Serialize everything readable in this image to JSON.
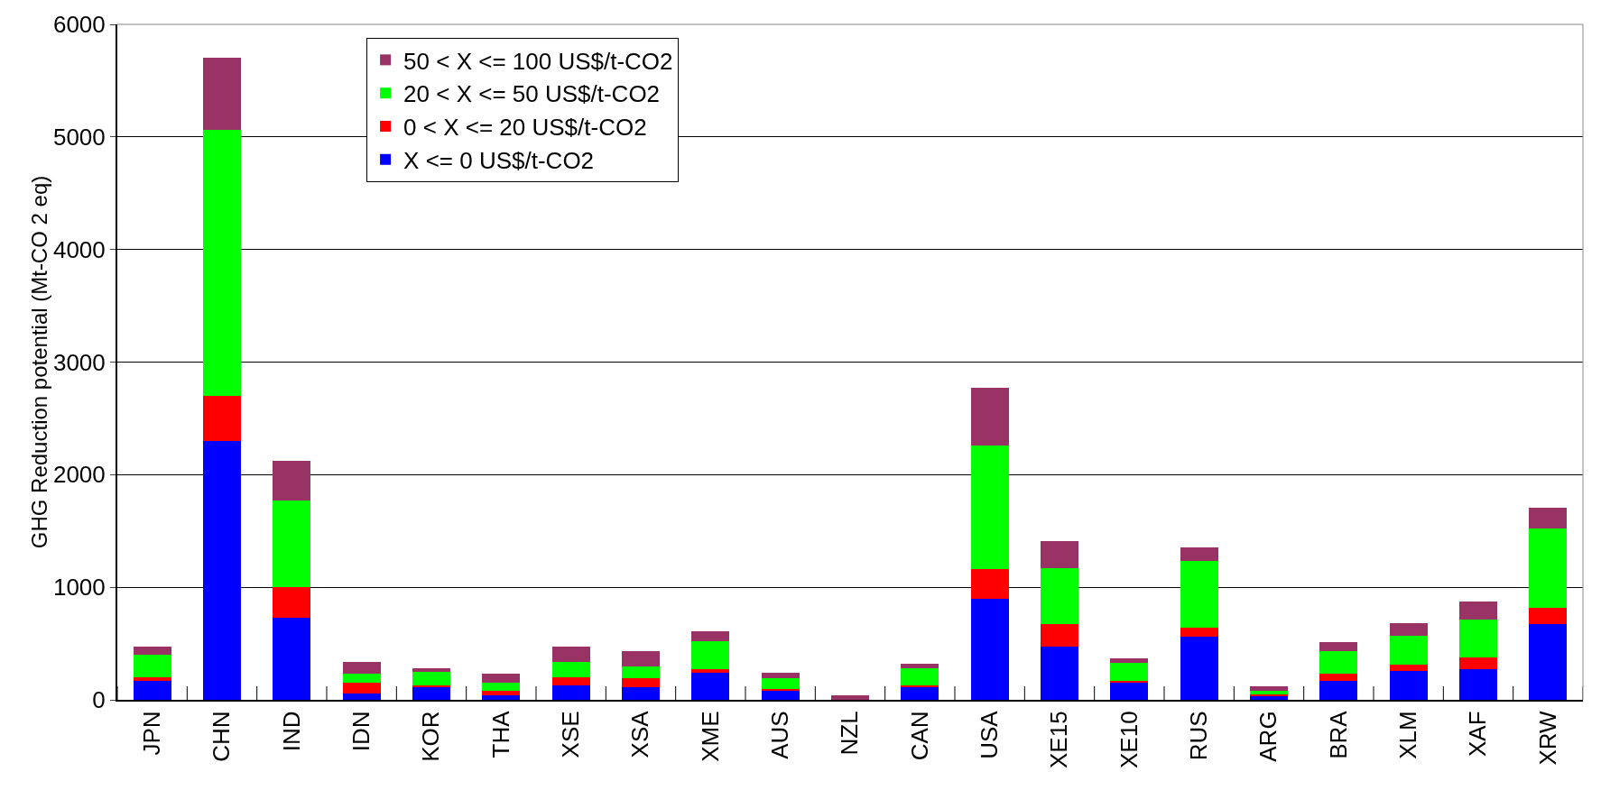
{
  "chart_data": {
    "type": "bar",
    "stacked": true,
    "ylabel": "GHG Reduction potential (Mt-CO 2 eq)",
    "categories": [
      "JPN",
      "CHN",
      "IND",
      "IDN",
      "KOR",
      "THA",
      "XSE",
      "XSA",
      "XME",
      "AUS",
      "NZL",
      "CAN",
      "USA",
      "XE15",
      "XE10",
      "RUS",
      "ARG",
      "BRA",
      "XLM",
      "XAF",
      "XRW"
    ],
    "series": [
      {
        "name": "X <= 0 US$/t-CO2",
        "color": "#0000ff",
        "values": [
          170,
          2300,
          730,
          60,
          110,
          40,
          130,
          110,
          240,
          80,
          0,
          110,
          900,
          470,
          150,
          560,
          30,
          170,
          260,
          270,
          670
        ]
      },
      {
        "name": "0 < X <= 20 US$/t-CO2",
        "color": "#ff0000",
        "values": [
          30,
          400,
          270,
          90,
          20,
          40,
          70,
          80,
          30,
          20,
          0,
          20,
          260,
          200,
          20,
          80,
          20,
          60,
          50,
          110,
          150
        ]
      },
      {
        "name": "20 < X <= 50 US$/t-CO2",
        "color": "#00ff00",
        "values": [
          200,
          2360,
          770,
          80,
          120,
          70,
          140,
          110,
          250,
          90,
          0,
          150,
          1100,
          500,
          160,
          590,
          30,
          200,
          260,
          330,
          700
        ]
      },
      {
        "name": "50 < X <= 100 US$/t-CO2",
        "color": "#993366",
        "values": [
          70,
          640,
          350,
          110,
          30,
          80,
          130,
          130,
          90,
          50,
          40,
          40,
          510,
          240,
          40,
          120,
          40,
          80,
          110,
          160,
          190
        ]
      }
    ],
    "ylim": [
      0,
      6000
    ],
    "yticks": [
      0,
      1000,
      2000,
      3000,
      4000,
      5000,
      6000
    ],
    "grid": "y",
    "legend": "top"
  }
}
